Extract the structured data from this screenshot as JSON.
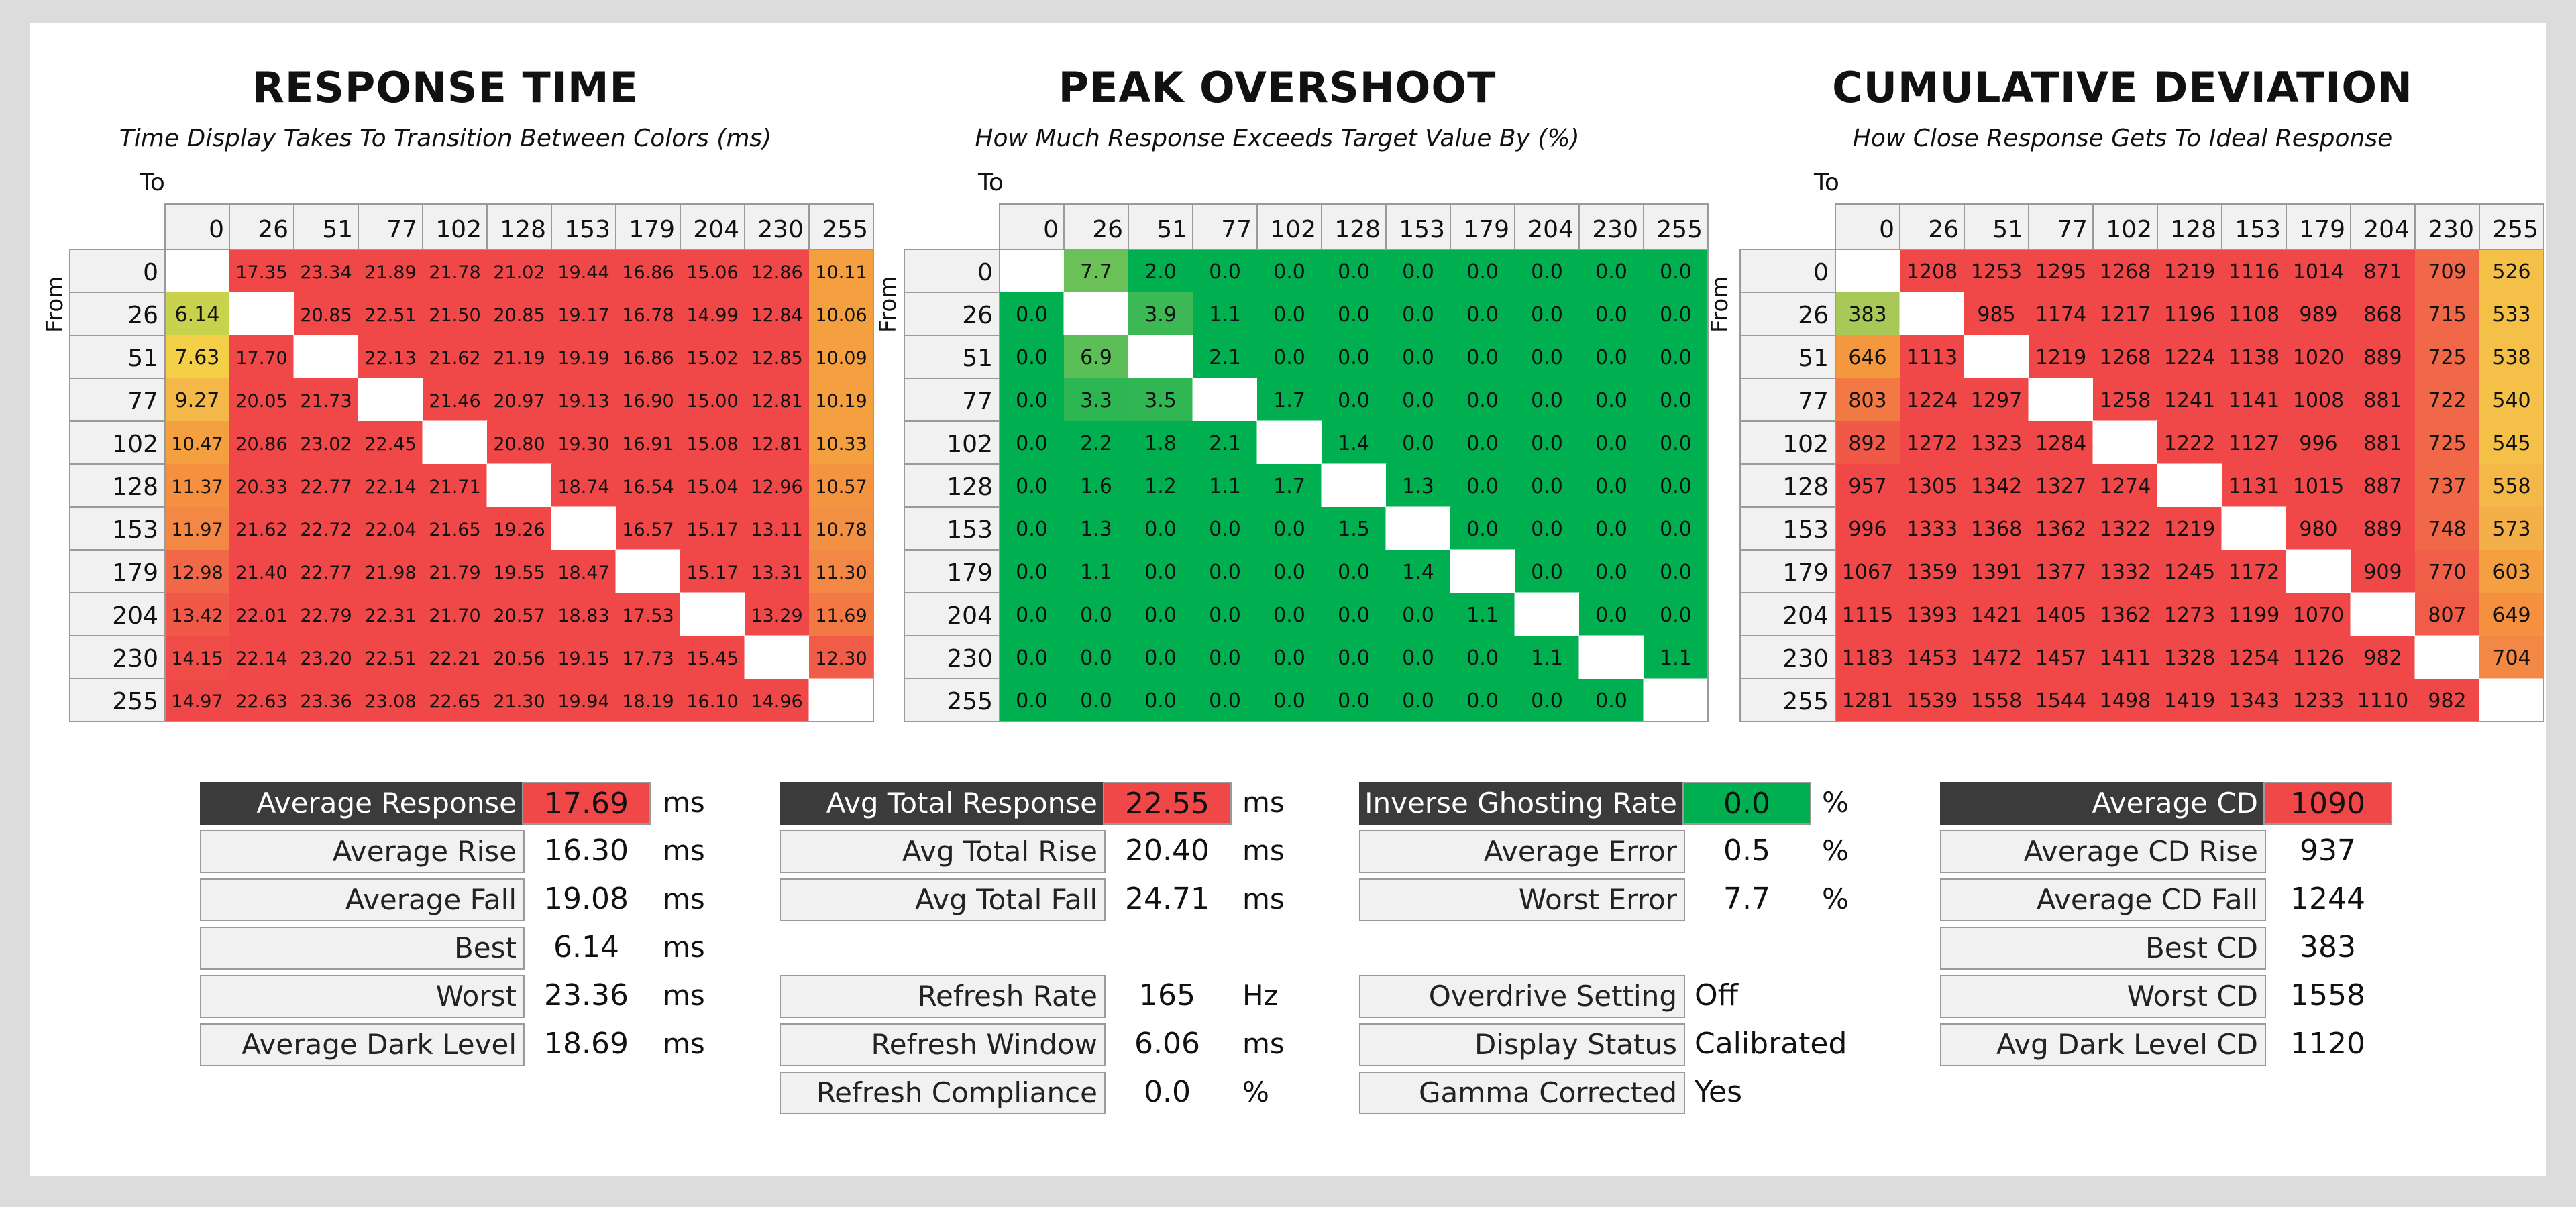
{
  "colors": {
    "red": "#f04848",
    "green": "#00b050",
    "orange": "#f4a040",
    "stat_label_dark": "#3b3b3b",
    "stat_label_light": "#f1f1f1"
  },
  "chart_data": [
    {
      "type": "heatmap",
      "title": "RESPONSE TIME",
      "subtitle": "Time Display Takes To Transition Between Colors (ms)",
      "xlabel": "To",
      "ylabel": "From",
      "categories": [
        "0",
        "26",
        "51",
        "77",
        "102",
        "128",
        "153",
        "179",
        "204",
        "230",
        "255"
      ],
      "values": [
        [
          null,
          "17.35",
          "23.34",
          "21.89",
          "21.78",
          "21.02",
          "19.44",
          "16.86",
          "15.06",
          "12.86",
          "10.11"
        ],
        [
          "6.14",
          null,
          "20.85",
          "22.51",
          "21.50",
          "20.85",
          "19.17",
          "16.78",
          "14.99",
          "12.84",
          "10.06"
        ],
        [
          "7.63",
          "17.70",
          null,
          "22.13",
          "21.62",
          "21.19",
          "19.19",
          "16.86",
          "15.02",
          "12.85",
          "10.09"
        ],
        [
          "9.27",
          "20.05",
          "21.73",
          null,
          "21.46",
          "20.97",
          "19.13",
          "16.90",
          "15.00",
          "12.81",
          "10.19"
        ],
        [
          "10.47",
          "20.86",
          "23.02",
          "22.45",
          null,
          "20.80",
          "19.30",
          "16.91",
          "15.08",
          "12.81",
          "10.33"
        ],
        [
          "11.37",
          "20.33",
          "22.77",
          "22.14",
          "21.71",
          null,
          "18.74",
          "16.54",
          "15.04",
          "12.96",
          "10.57"
        ],
        [
          "11.97",
          "21.62",
          "22.72",
          "22.04",
          "21.65",
          "19.26",
          null,
          "16.57",
          "15.17",
          "13.11",
          "10.78"
        ],
        [
          "12.98",
          "21.40",
          "22.77",
          "21.98",
          "21.79",
          "19.55",
          "18.47",
          null,
          "15.17",
          "13.31",
          "11.30"
        ],
        [
          "13.42",
          "22.01",
          "22.79",
          "22.31",
          "21.70",
          "20.57",
          "18.83",
          "17.53",
          null,
          "13.29",
          "11.69"
        ],
        [
          "14.15",
          "22.14",
          "23.20",
          "22.51",
          "22.21",
          "20.56",
          "19.15",
          "17.73",
          "15.45",
          null,
          "12.30"
        ],
        [
          "14.97",
          "22.63",
          "23.36",
          "23.08",
          "22.65",
          "21.30",
          "19.94",
          "18.19",
          "16.10",
          "14.96",
          null
        ]
      ],
      "colors": [
        [
          null,
          "#f04848",
          "#f04848",
          "#f04848",
          "#f04848",
          "#f04848",
          "#f04848",
          "#f04848",
          "#f04848",
          "#f04848",
          "#f4a040"
        ],
        [
          "#c8d24c",
          null,
          "#f04848",
          "#f04848",
          "#f04848",
          "#f04848",
          "#f04848",
          "#f04848",
          "#f04848",
          "#f04848",
          "#f4a040"
        ],
        [
          "#f4d048",
          "#f04848",
          null,
          "#f04848",
          "#f04848",
          "#f04848",
          "#f04848",
          "#f04848",
          "#f04848",
          "#f04848",
          "#f4a040"
        ],
        [
          "#f4b848",
          "#f04848",
          "#f04848",
          null,
          "#f04848",
          "#f04848",
          "#f04848",
          "#f04848",
          "#f04848",
          "#f04848",
          "#f4a040"
        ],
        [
          "#f4a040",
          "#f04848",
          "#f04848",
          "#f04848",
          null,
          "#f04848",
          "#f04848",
          "#f04848",
          "#f04848",
          "#f04848",
          "#f4a040"
        ],
        [
          "#f49040",
          "#f04848",
          "#f04848",
          "#f04848",
          "#f04848",
          null,
          "#f04848",
          "#f04848",
          "#f04848",
          "#f04848",
          "#f49440"
        ],
        [
          "#f28844",
          "#f04848",
          "#f04848",
          "#f04848",
          "#f04848",
          "#f04848",
          null,
          "#f04848",
          "#f04848",
          "#f04848",
          "#f29044"
        ],
        [
          "#f06848",
          "#f04848",
          "#f04848",
          "#f04848",
          "#f04848",
          "#f04848",
          "#f04848",
          null,
          "#f04848",
          "#f04848",
          "#f28844"
        ],
        [
          "#f05848",
          "#f04848",
          "#f04848",
          "#f04848",
          "#f04848",
          "#f04848",
          "#f04848",
          "#f04848",
          null,
          "#f04848",
          "#f27844"
        ],
        [
          "#f04c48",
          "#f04848",
          "#f04848",
          "#f04848",
          "#f04848",
          "#f04848",
          "#f04848",
          "#f04848",
          "#f04848",
          null,
          "#f05c48"
        ],
        [
          "#f04848",
          "#f04848",
          "#f04848",
          "#f04848",
          "#f04848",
          "#f04848",
          "#f04848",
          "#f04848",
          "#f04848",
          "#f04848",
          null
        ]
      ]
    },
    {
      "type": "heatmap",
      "title": "PEAK OVERSHOOT",
      "subtitle": "How Much Response Exceeds Target Value By (%)",
      "xlabel": "To",
      "ylabel": "From",
      "categories": [
        "0",
        "26",
        "51",
        "77",
        "102",
        "128",
        "153",
        "179",
        "204",
        "230",
        "255"
      ],
      "values": [
        [
          null,
          "7.7",
          "2.0",
          "0.0",
          "0.0",
          "0.0",
          "0.0",
          "0.0",
          "0.0",
          "0.0",
          "0.0"
        ],
        [
          "0.0",
          null,
          "3.9",
          "1.1",
          "0.0",
          "0.0",
          "0.0",
          "0.0",
          "0.0",
          "0.0",
          "0.0"
        ],
        [
          "0.0",
          "6.9",
          null,
          "2.1",
          "0.0",
          "0.0",
          "0.0",
          "0.0",
          "0.0",
          "0.0",
          "0.0"
        ],
        [
          "0.0",
          "3.3",
          "3.5",
          null,
          "1.7",
          "0.0",
          "0.0",
          "0.0",
          "0.0",
          "0.0",
          "0.0"
        ],
        [
          "0.0",
          "2.2",
          "1.8",
          "2.1",
          null,
          "1.4",
          "0.0",
          "0.0",
          "0.0",
          "0.0",
          "0.0"
        ],
        [
          "0.0",
          "1.6",
          "1.2",
          "1.1",
          "1.7",
          null,
          "1.3",
          "0.0",
          "0.0",
          "0.0",
          "0.0"
        ],
        [
          "0.0",
          "1.3",
          "0.0",
          "0.0",
          "0.0",
          "1.5",
          null,
          "0.0",
          "0.0",
          "0.0",
          "0.0"
        ],
        [
          "0.0",
          "1.1",
          "0.0",
          "0.0",
          "0.0",
          "0.0",
          "1.4",
          null,
          "0.0",
          "0.0",
          "0.0"
        ],
        [
          "0.0",
          "0.0",
          "0.0",
          "0.0",
          "0.0",
          "0.0",
          "0.0",
          "1.1",
          null,
          "0.0",
          "0.0"
        ],
        [
          "0.0",
          "0.0",
          "0.0",
          "0.0",
          "0.0",
          "0.0",
          "0.0",
          "0.0",
          "1.1",
          null,
          "1.1"
        ],
        [
          "0.0",
          "0.0",
          "0.0",
          "0.0",
          "0.0",
          "0.0",
          "0.0",
          "0.0",
          "0.0",
          "0.0",
          null
        ]
      ],
      "colors": [
        [
          null,
          "#6cc058",
          "#00b050",
          "#00b050",
          "#00b050",
          "#00b050",
          "#00b050",
          "#00b050",
          "#00b050",
          "#00b050",
          "#00b050"
        ],
        [
          "#00b050",
          null,
          "#3cb854",
          "#00b050",
          "#00b050",
          "#00b050",
          "#00b050",
          "#00b050",
          "#00b050",
          "#00b050",
          "#00b050"
        ],
        [
          "#00b050",
          "#5cbe56",
          null,
          "#00b050",
          "#00b050",
          "#00b050",
          "#00b050",
          "#00b050",
          "#00b050",
          "#00b050",
          "#00b050"
        ],
        [
          "#00b050",
          "#2cb652",
          "#30b652",
          null,
          "#00b050",
          "#00b050",
          "#00b050",
          "#00b050",
          "#00b050",
          "#00b050",
          "#00b050"
        ],
        [
          "#00b050",
          "#00b050",
          "#00b050",
          "#00b050",
          null,
          "#00b050",
          "#00b050",
          "#00b050",
          "#00b050",
          "#00b050",
          "#00b050"
        ],
        [
          "#00b050",
          "#00b050",
          "#00b050",
          "#00b050",
          "#00b050",
          null,
          "#00b050",
          "#00b050",
          "#00b050",
          "#00b050",
          "#00b050"
        ],
        [
          "#00b050",
          "#00b050",
          "#00b050",
          "#00b050",
          "#00b050",
          "#00b050",
          null,
          "#00b050",
          "#00b050",
          "#00b050",
          "#00b050"
        ],
        [
          "#00b050",
          "#00b050",
          "#00b050",
          "#00b050",
          "#00b050",
          "#00b050",
          "#00b050",
          null,
          "#00b050",
          "#00b050",
          "#00b050"
        ],
        [
          "#00b050",
          "#00b050",
          "#00b050",
          "#00b050",
          "#00b050",
          "#00b050",
          "#00b050",
          "#00b050",
          null,
          "#00b050",
          "#00b050"
        ],
        [
          "#00b050",
          "#00b050",
          "#00b050",
          "#00b050",
          "#00b050",
          "#00b050",
          "#00b050",
          "#00b050",
          "#00b050",
          null,
          "#00b050"
        ],
        [
          "#00b050",
          "#00b050",
          "#00b050",
          "#00b050",
          "#00b050",
          "#00b050",
          "#00b050",
          "#00b050",
          "#00b050",
          "#00b050",
          null
        ]
      ]
    },
    {
      "type": "heatmap",
      "title": "CUMULATIVE DEVIATION",
      "subtitle": "How Close Response Gets To Ideal Response",
      "xlabel": "To",
      "ylabel": "From",
      "categories": [
        "0",
        "26",
        "51",
        "77",
        "102",
        "128",
        "153",
        "179",
        "204",
        "230",
        "255"
      ],
      "values": [
        [
          null,
          "1208",
          "1253",
          "1295",
          "1268",
          "1219",
          "1116",
          "1014",
          "871",
          "709",
          "526"
        ],
        [
          "383",
          null,
          "985",
          "1174",
          "1217",
          "1196",
          "1108",
          "989",
          "868",
          "715",
          "533"
        ],
        [
          "646",
          "1113",
          null,
          "1219",
          "1268",
          "1224",
          "1138",
          "1020",
          "889",
          "725",
          "538"
        ],
        [
          "803",
          "1224",
          "1297",
          null,
          "1258",
          "1241",
          "1141",
          "1008",
          "881",
          "722",
          "540"
        ],
        [
          "892",
          "1272",
          "1323",
          "1284",
          null,
          "1222",
          "1127",
          "996",
          "881",
          "725",
          "545"
        ],
        [
          "957",
          "1305",
          "1342",
          "1327",
          "1274",
          null,
          "1131",
          "1015",
          "887",
          "737",
          "558"
        ],
        [
          "996",
          "1333",
          "1368",
          "1362",
          "1322",
          "1219",
          null,
          "980",
          "889",
          "748",
          "573"
        ],
        [
          "1067",
          "1359",
          "1391",
          "1377",
          "1332",
          "1245",
          "1172",
          null,
          "909",
          "770",
          "603"
        ],
        [
          "1115",
          "1393",
          "1421",
          "1405",
          "1362",
          "1273",
          "1199",
          "1070",
          null,
          "807",
          "649"
        ],
        [
          "1183",
          "1453",
          "1472",
          "1457",
          "1411",
          "1328",
          "1254",
          "1126",
          "982",
          null,
          "704"
        ],
        [
          "1281",
          "1539",
          "1558",
          "1544",
          "1498",
          "1419",
          "1343",
          "1233",
          "1110",
          "982",
          null
        ]
      ],
      "colors": [
        [
          null,
          "#f04848",
          "#f04848",
          "#f04848",
          "#f04848",
          "#f04848",
          "#f04848",
          "#f04848",
          "#f04848",
          "#f06848",
          "#f4c048"
        ],
        [
          "#a8c858",
          null,
          "#f04848",
          "#f04848",
          "#f04848",
          "#f04848",
          "#f04848",
          "#f04848",
          "#f04848",
          "#f06848",
          "#f4c048"
        ],
        [
          "#f49840",
          "#f04848",
          null,
          "#f04848",
          "#f04848",
          "#f04848",
          "#f04848",
          "#f04848",
          "#f04848",
          "#f06848",
          "#f4c048"
        ],
        [
          "#f27844",
          "#f04848",
          "#f04848",
          null,
          "#f04848",
          "#f04848",
          "#f04848",
          "#f04848",
          "#f04848",
          "#f06848",
          "#f4c048"
        ],
        [
          "#f05848",
          "#f04848",
          "#f04848",
          "#f04848",
          null,
          "#f04848",
          "#f04848",
          "#f04848",
          "#f04848",
          "#f06848",
          "#f4c048"
        ],
        [
          "#f04848",
          "#f04848",
          "#f04848",
          "#f04848",
          "#f04848",
          null,
          "#f04848",
          "#f04848",
          "#f04848",
          "#f06848",
          "#f4b848"
        ],
        [
          "#f04848",
          "#f04848",
          "#f04848",
          "#f04848",
          "#f04848",
          "#f04848",
          null,
          "#f04848",
          "#f04848",
          "#f06848",
          "#f4b048"
        ],
        [
          "#f04848",
          "#f04848",
          "#f04848",
          "#f04848",
          "#f04848",
          "#f04848",
          "#f04848",
          null,
          "#f04848",
          "#f06048",
          "#f4a040"
        ],
        [
          "#f04848",
          "#f04848",
          "#f04848",
          "#f04848",
          "#f04848",
          "#f04848",
          "#f04848",
          "#f04848",
          null,
          "#f05c48",
          "#f49040"
        ],
        [
          "#f04848",
          "#f04848",
          "#f04848",
          "#f04848",
          "#f04848",
          "#f04848",
          "#f04848",
          "#f04848",
          "#f04848",
          null,
          "#f28844"
        ],
        [
          "#f04848",
          "#f04848",
          "#f04848",
          "#f04848",
          "#f04848",
          "#f04848",
          "#f04848",
          "#f04848",
          "#f04848",
          "#f04848",
          null
        ]
      ]
    }
  ],
  "stats": {
    "response": {
      "rows": [
        {
          "label": "Average Response",
          "value": "17.69",
          "unit": "ms"
        },
        {
          "label": "Average Rise",
          "value": "16.30",
          "unit": "ms"
        },
        {
          "label": "Average Fall",
          "value": "19.08",
          "unit": "ms"
        },
        {
          "label": "Best",
          "value": "6.14",
          "unit": "ms"
        },
        {
          "label": "Worst",
          "value": "23.36",
          "unit": "ms"
        },
        {
          "label": "Average Dark Level",
          "value": "18.69",
          "unit": "ms"
        }
      ]
    },
    "total": {
      "rows": [
        {
          "label": "Avg Total Response",
          "value": "22.55",
          "unit": "ms"
        },
        {
          "label": "Avg Total Rise",
          "value": "20.40",
          "unit": "ms"
        },
        {
          "label": "Avg Total Fall",
          "value": "24.71",
          "unit": "ms"
        }
      ],
      "refresh_rows": [
        {
          "label": "Refresh Rate",
          "value": "165",
          "unit": "Hz"
        },
        {
          "label": "Refresh Window",
          "value": "6.06",
          "unit": "ms"
        },
        {
          "label": "Refresh Compliance",
          "value": "0.0",
          "unit": "%"
        }
      ]
    },
    "overshoot": {
      "rows": [
        {
          "label": "Inverse Ghosting Rate",
          "value": "0.0",
          "unit": "%"
        },
        {
          "label": "Average Error",
          "value": "0.5",
          "unit": "%"
        },
        {
          "label": "Worst Error",
          "value": "7.7",
          "unit": "%"
        }
      ],
      "settings_rows": [
        {
          "label": "Overdrive Setting",
          "value": "Off"
        },
        {
          "label": "Display Status",
          "value": "Calibrated"
        },
        {
          "label": "Gamma Corrected",
          "value": "Yes"
        }
      ]
    },
    "cd": {
      "rows": [
        {
          "label": "Average CD",
          "value": "1090"
        },
        {
          "label": "Average CD Rise",
          "value": "937"
        },
        {
          "label": "Average CD Fall",
          "value": "1244"
        },
        {
          "label": "Best CD",
          "value": "383"
        },
        {
          "label": "Worst CD",
          "value": "1558"
        },
        {
          "label": "Avg Dark Level CD",
          "value": "1120"
        }
      ]
    }
  }
}
